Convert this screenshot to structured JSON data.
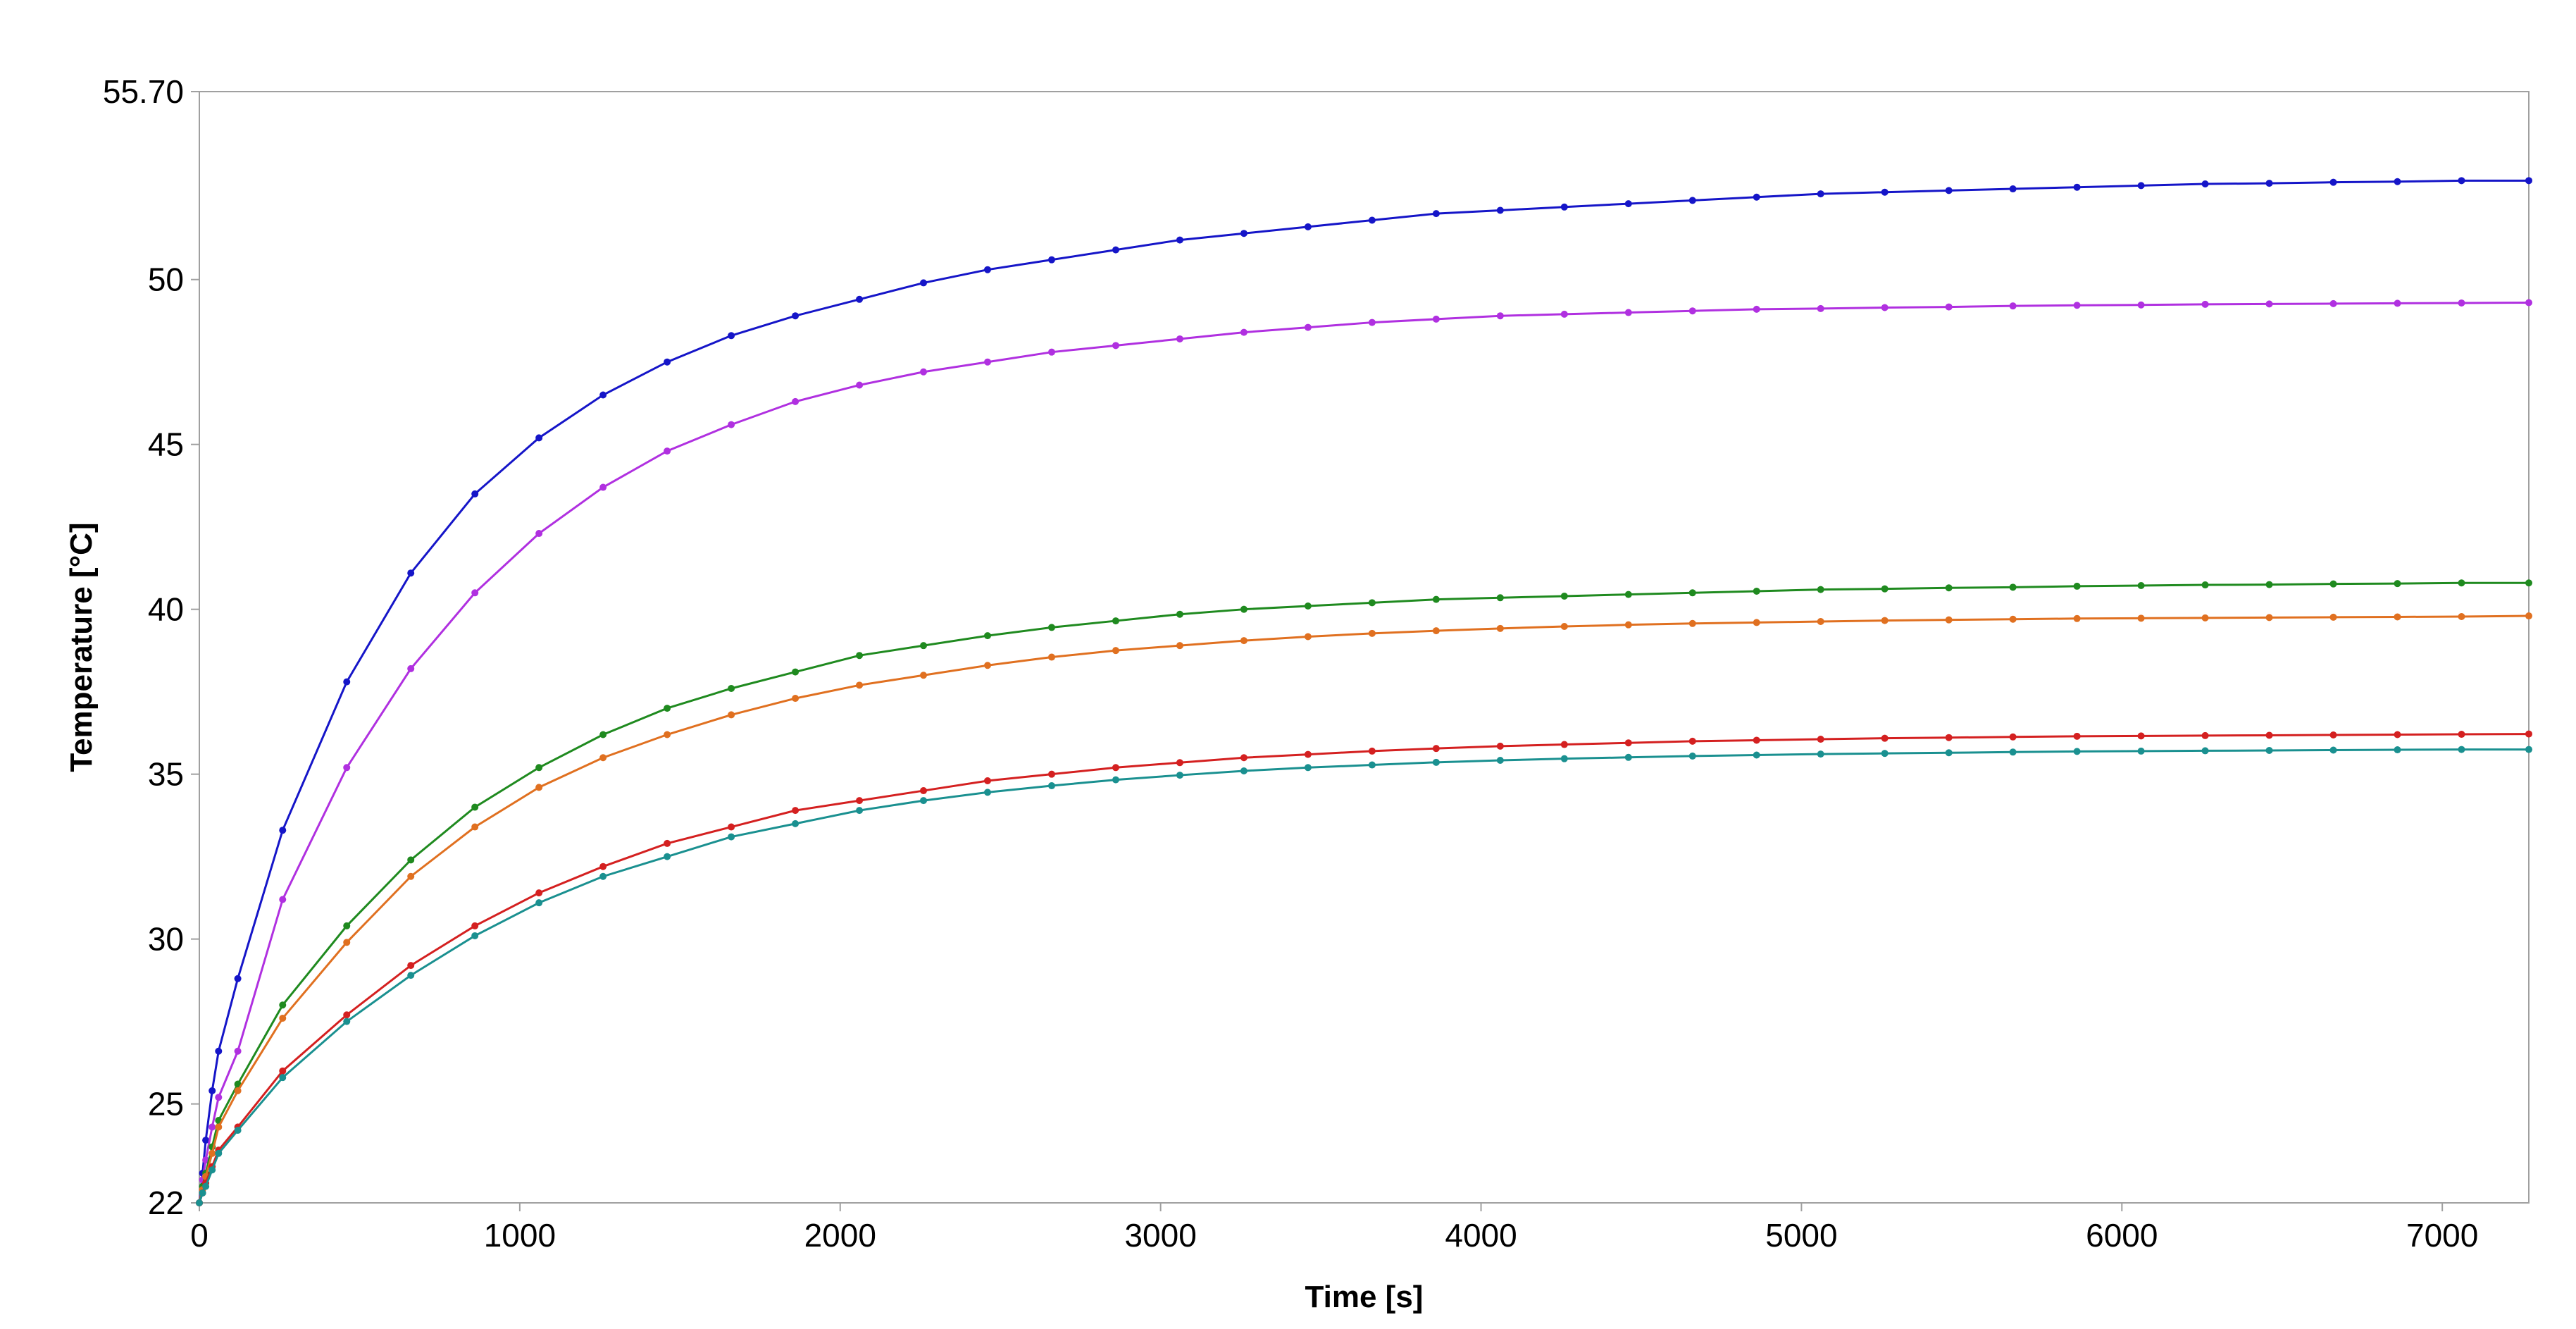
{
  "chart_data": {
    "type": "line",
    "title": "",
    "xlabel": "Time [s]",
    "ylabel": "Temperature [°C]",
    "xlim": [
      0,
      7270
    ],
    "ylim": [
      22,
      55.7
    ],
    "x_ticks": [
      0,
      1000,
      2000,
      3000,
      4000,
      5000,
      6000,
      7000
    ],
    "x_tick_labels": [
      "0",
      "1000",
      "2000",
      "3000",
      "4000",
      "5000",
      "6000",
      "7000"
    ],
    "y_ticks": [
      22,
      25,
      30,
      35,
      40,
      45,
      50,
      55.7
    ],
    "y_tick_labels": [
      "22",
      "25",
      "30",
      "35",
      "40",
      "45",
      "50",
      "55.70"
    ],
    "grid": false,
    "legend": "none",
    "x": [
      0,
      10,
      20,
      40,
      60,
      120,
      260,
      460,
      660,
      860,
      1060,
      1260,
      1460,
      1660,
      1860,
      2060,
      2260,
      2460,
      2660,
      2860,
      3060,
      3260,
      3460,
      3660,
      3860,
      4060,
      4260,
      4460,
      4660,
      4860,
      5060,
      5260,
      5460,
      5660,
      5860,
      6060,
      6260,
      6460,
      6660,
      6860,
      7060,
      7270
    ],
    "series": [
      {
        "color": "#1515c8",
        "values": [
          22.0,
          22.9,
          23.9,
          25.4,
          26.6,
          28.8,
          33.3,
          37.8,
          41.1,
          43.5,
          45.2,
          46.5,
          47.5,
          48.3,
          48.9,
          49.4,
          49.9,
          50.3,
          50.6,
          50.9,
          51.2,
          51.4,
          51.6,
          51.8,
          52.0,
          52.1,
          52.2,
          52.3,
          52.4,
          52.5,
          52.6,
          52.65,
          52.7,
          52.75,
          52.8,
          52.85,
          52.9,
          52.92,
          52.95,
          52.97,
          53.0,
          53.0
        ]
      },
      {
        "color": "#b030e0",
        "values": [
          22.0,
          22.7,
          23.3,
          24.3,
          25.2,
          26.6,
          31.2,
          35.2,
          38.2,
          40.5,
          42.3,
          43.7,
          44.8,
          45.6,
          46.3,
          46.8,
          47.2,
          47.5,
          47.8,
          48.0,
          48.2,
          48.4,
          48.55,
          48.7,
          48.8,
          48.9,
          48.95,
          49.0,
          49.05,
          49.1,
          49.12,
          49.15,
          49.17,
          49.2,
          49.22,
          49.23,
          49.25,
          49.26,
          49.27,
          49.28,
          49.29,
          49.3
        ]
      },
      {
        "color": "#1f8a1f",
        "values": [
          22.0,
          22.5,
          22.9,
          23.7,
          24.5,
          25.6,
          28.0,
          30.4,
          32.4,
          34.0,
          35.2,
          36.2,
          37.0,
          37.6,
          38.1,
          38.6,
          38.9,
          39.2,
          39.45,
          39.65,
          39.85,
          40.0,
          40.1,
          40.2,
          40.3,
          40.35,
          40.4,
          40.45,
          40.5,
          40.55,
          40.6,
          40.62,
          40.65,
          40.67,
          40.7,
          40.72,
          40.74,
          40.75,
          40.77,
          40.78,
          40.8,
          40.8
        ]
      },
      {
        "color": "#e07020",
        "values": [
          22.0,
          22.4,
          22.8,
          23.5,
          24.3,
          25.4,
          27.6,
          29.9,
          31.9,
          33.4,
          34.6,
          35.5,
          36.2,
          36.8,
          37.3,
          37.7,
          38.0,
          38.3,
          38.55,
          38.75,
          38.9,
          39.05,
          39.17,
          39.27,
          39.35,
          39.42,
          39.48,
          39.53,
          39.57,
          39.6,
          39.63,
          39.66,
          39.68,
          39.7,
          39.72,
          39.73,
          39.74,
          39.75,
          39.76,
          39.77,
          39.78,
          39.8
        ]
      },
      {
        "color": "#d42020",
        "values": [
          22.0,
          22.3,
          22.6,
          23.1,
          23.6,
          24.3,
          26.0,
          27.7,
          29.2,
          30.4,
          31.4,
          32.2,
          32.9,
          33.4,
          33.9,
          34.2,
          34.5,
          34.8,
          35.0,
          35.2,
          35.35,
          35.5,
          35.6,
          35.7,
          35.78,
          35.85,
          35.9,
          35.95,
          36.0,
          36.03,
          36.06,
          36.09,
          36.11,
          36.13,
          36.15,
          36.16,
          36.17,
          36.18,
          36.19,
          36.2,
          36.21,
          36.22
        ]
      },
      {
        "color": "#1a9090",
        "values": [
          22.0,
          22.3,
          22.5,
          23.0,
          23.5,
          24.2,
          25.8,
          27.5,
          28.9,
          30.1,
          31.1,
          31.9,
          32.5,
          33.1,
          33.5,
          33.9,
          34.2,
          34.45,
          34.65,
          34.83,
          34.97,
          35.1,
          35.2,
          35.28,
          35.36,
          35.42,
          35.47,
          35.51,
          35.55,
          35.58,
          35.61,
          35.63,
          35.65,
          35.67,
          35.69,
          35.7,
          35.71,
          35.72,
          35.73,
          35.74,
          35.75,
          35.75
        ]
      }
    ]
  }
}
